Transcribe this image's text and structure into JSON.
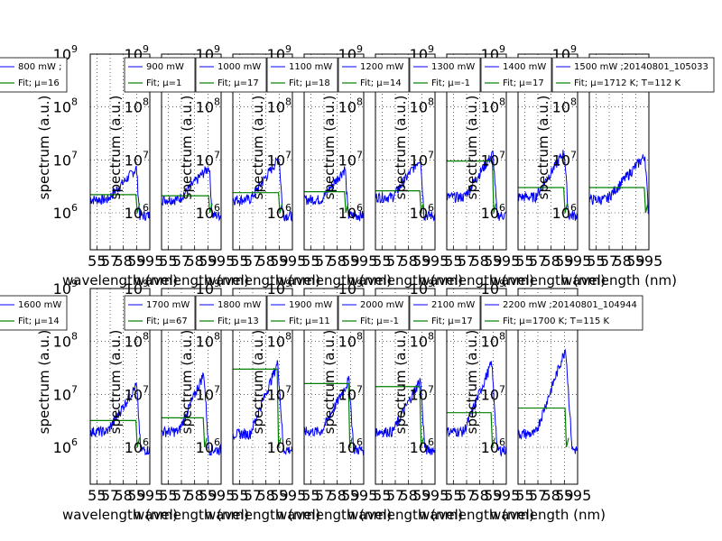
{
  "chart_data": {
    "type": "line",
    "grid": true,
    "yscale": "log",
    "ylim": [
      200000,
      1000000000
    ],
    "xlim": [
      550,
      595
    ],
    "xticks": [
      555,
      565,
      575,
      585,
      595
    ],
    "xtick_labels": [
      "55",
      "57",
      "58",
      "59",
      "595"
    ],
    "ytick_labels": [
      {
        "base": "10",
        "exp": "6"
      },
      {
        "base": "10",
        "exp": "7"
      },
      {
        "base": "10",
        "exp": "8"
      },
      {
        "base": "10",
        "exp": "9"
      }
    ],
    "xlabel": "wavelength (nm)",
    "ylabel": "spectrum (a.u.)",
    "colors": {
      "data": "#0000ff",
      "fit": "#008000",
      "grid": "#000000"
    },
    "rows": [
      {
        "panels": [
          {
            "power": "800 mW",
            "legend_data": "800 mW ;",
            "legend_fit": "Fit; μ=16",
            "peak": 7000000,
            "fit_level": 2200000,
            "cutoff": 585,
            "base": 1800000
          },
          {
            "power": "900 mW",
            "legend_data": "900 mW",
            "legend_fit": "Fit; μ=1",
            "peak": 7500000,
            "fit_level": 2100000,
            "cutoff": 586,
            "base": 1800000
          },
          {
            "power": "1000 mW",
            "legend_data": "1000 mW",
            "legend_fit": "Fit; μ=17",
            "peak": 11000000,
            "fit_level": 2400000,
            "cutoff": 585,
            "base": 1800000
          },
          {
            "power": "1100 mW",
            "legend_data": "1100 mW",
            "legend_fit": "Fit; μ=18",
            "peak": 7000000,
            "fit_level": 2500000,
            "cutoff": 581,
            "base": 1800000
          },
          {
            "power": "1200 mW",
            "legend_data": "1200 mW",
            "legend_fit": "Fit; μ=14",
            "peak": 11000000,
            "fit_level": 2600000,
            "cutoff": 584,
            "base": 2000000
          },
          {
            "power": "1300 mW",
            "legend_data": "1300 mW",
            "legend_fit": "Fit; μ=-1",
            "peak": 13500000,
            "fit_level": 9500000,
            "cutoff": 585,
            "base": 2000000
          },
          {
            "power": "1400 mW",
            "legend_data": "1400 mW",
            "legend_fit": "Fit; μ=17",
            "peak": 14500000,
            "fit_level": 3000000,
            "cutoff": 585,
            "base": 2000000
          },
          {
            "power": "1500 mW",
            "legend_data": "1500 mW ;20140801_105033",
            "legend_fit": "Fit; μ=1712 K; T=112 K",
            "peak": 12000000,
            "fit_level": 3000000,
            "cutoff": 592,
            "base": 1800000
          }
        ]
      },
      {
        "panels": [
          {
            "power": "1600 mW",
            "legend_data": "1600 mW",
            "legend_fit": "Fit; μ=14",
            "peak": 15000000,
            "fit_level": 3200000,
            "cutoff": 585,
            "base": 2000000
          },
          {
            "power": "1700 mW",
            "legend_data": "1700 mW",
            "legend_fit": "Fit; μ=67",
            "peak": 25000000,
            "fit_level": 3600000,
            "cutoff": 582,
            "base": 2000000
          },
          {
            "power": "1800 mW",
            "legend_data": "1800 mW",
            "legend_fit": "Fit; μ=13",
            "peak": 40000000,
            "fit_level": 30000000,
            "cutoff": 584,
            "base": 1800000
          },
          {
            "power": "1900 mW",
            "legend_data": "1900 mW",
            "legend_fit": "Fit; μ=11",
            "peak": 19000000,
            "fit_level": 16000000,
            "cutoff": 584,
            "base": 2000000
          },
          {
            "power": "2000 mW",
            "legend_data": "2000 mW",
            "legend_fit": "Fit; μ=-1",
            "peak": 19000000,
            "fit_level": 14000000,
            "cutoff": 584,
            "base": 2000000
          },
          {
            "power": "2100 mW",
            "legend_data": "2100 mW",
            "legend_fit": "Fit; μ=17",
            "peak": 40000000,
            "fit_level": 4500000,
            "cutoff": 584,
            "base": 2000000
          },
          {
            "power": "2200 mW",
            "legend_data": "2200 mW ;20140801_104944",
            "legend_fit": "Fit; μ=1700 K; T=115 K",
            "peak": 75000000,
            "fit_level": 5500000,
            "cutoff": 586,
            "base": 1800000
          }
        ]
      }
    ]
  }
}
